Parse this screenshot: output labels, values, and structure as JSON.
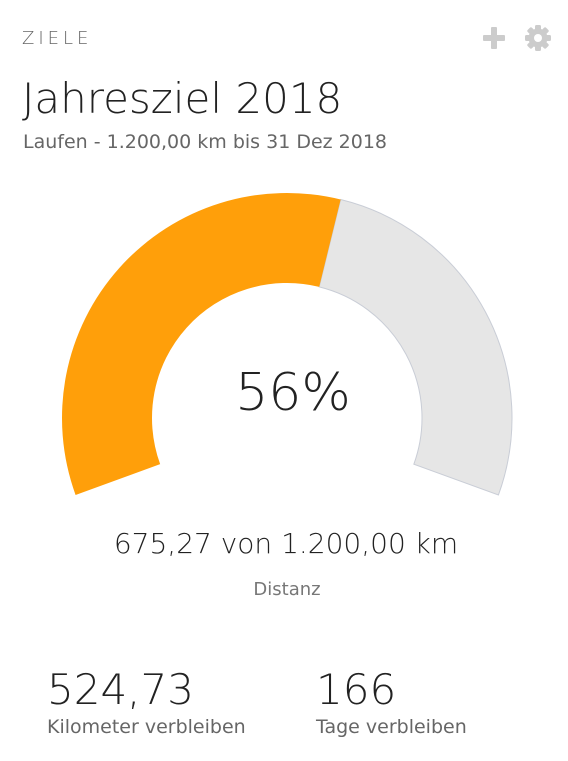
{
  "header": {
    "label": "ZIELE",
    "add_icon": "plus-icon",
    "settings_icon": "gear-icon",
    "icon_color": "#cccccc"
  },
  "goal": {
    "title": "Jahresziel 2018",
    "subtitle": "Laufen - 1.200,00 km bis 31 Dez 2018"
  },
  "gauge": {
    "percent_label": "56%",
    "fraction": 0.5627,
    "fill_color": "#ff9f0a",
    "track_color": "#e6e6e6"
  },
  "progress": {
    "text": "675,27 von 1.200,00 km",
    "metric_label": "Distanz"
  },
  "stats": [
    {
      "value": "524,73",
      "label": "Kilometer verbleiben"
    },
    {
      "value": "166",
      "label": "Tage verbleiben"
    }
  ]
}
